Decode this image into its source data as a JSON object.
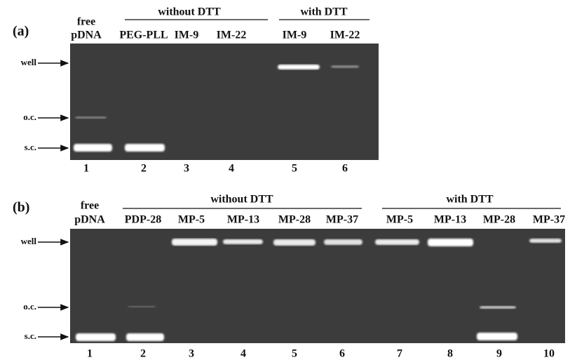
{
  "panels": [
    {
      "label": "(a)",
      "groups": [
        {
          "title": "without DTT"
        },
        {
          "title": "with DTT"
        }
      ],
      "lanes": [
        {
          "top": "free",
          "label": "pDNA",
          "number": "1"
        },
        {
          "label": "PEG-PLL",
          "number": "2"
        },
        {
          "label": "IM-9",
          "number": "3"
        },
        {
          "label": "IM-22",
          "number": "4"
        },
        {
          "label": "IM-9",
          "number": "5"
        },
        {
          "label": "IM-22",
          "number": "6"
        }
      ],
      "markers": [
        "well",
        "o.c.",
        "s.c."
      ]
    },
    {
      "label": "(b)",
      "groups": [
        {
          "title": "without DTT"
        },
        {
          "title": "with DTT"
        }
      ],
      "lanes": [
        {
          "top": "free",
          "label": "pDNA",
          "number": "1"
        },
        {
          "label": "PDP-28",
          "number": "2"
        },
        {
          "label": "MP-5",
          "number": "3"
        },
        {
          "label": "MP-13",
          "number": "4"
        },
        {
          "label": "MP-28",
          "number": "5"
        },
        {
          "label": "MP-37",
          "number": "6"
        },
        {
          "label": "MP-5",
          "number": "7"
        },
        {
          "label": "MP-13",
          "number": "8"
        },
        {
          "label": "MP-28",
          "number": "9"
        },
        {
          "label": "MP-37",
          "number": "10"
        }
      ],
      "markers": [
        "well",
        "o.c.",
        "s.c."
      ]
    }
  ]
}
